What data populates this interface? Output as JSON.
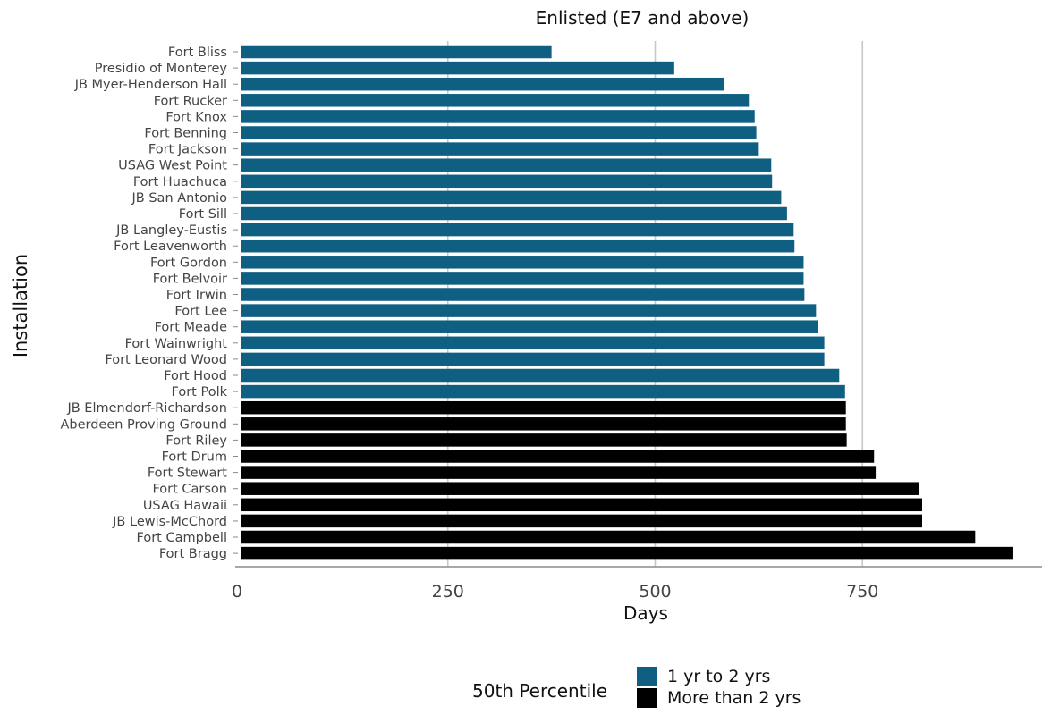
{
  "chart_data": {
    "type": "bar",
    "orientation": "horizontal",
    "title": "Enlisted (E7 and above)",
    "xlabel": "Days",
    "ylabel": "Installation",
    "xlim": [
      0,
      940
    ],
    "xticks": [
      0,
      250,
      500,
      750
    ],
    "grid": "vertical major gridlines",
    "legend_title": "50th Percentile",
    "legend_position": "bottom",
    "groups": [
      {
        "name": "1 yr to 2 yrs",
        "color": "#0f5f82"
      },
      {
        "name": "More than 2 yrs",
        "color": "#000000"
      }
    ],
    "categories": [
      "Fort Bliss",
      "Presidio of Monterey",
      "JB Myer-Henderson Hall",
      "Fort Rucker",
      "Fort Knox",
      "Fort Benning",
      "Fort Jackson",
      "USAG West Point",
      "Fort Huachuca",
      "JB San Antonio",
      "Fort Sill",
      "JB Langley-Eustis",
      "Fort Leavenworth",
      "Fort Gordon",
      "Fort Belvoir",
      "Fort Irwin",
      "Fort Lee",
      "Fort Meade",
      "Fort Wainwright",
      "Fort Leonard Wood",
      "Fort Hood",
      "Fort Polk",
      "JB Elmendorf-Richardson",
      "Aberdeen Proving Ground",
      "Fort Riley",
      "Fort Drum",
      "Fort Stewart",
      "Fort Carson",
      "USAG Hawaii",
      "JB Lewis-McChord",
      "Fort Campbell",
      "Fort Bragg"
    ],
    "values": [
      375,
      523,
      583,
      613,
      620,
      622,
      625,
      640,
      641,
      652,
      659,
      667,
      668,
      679,
      679,
      680,
      694,
      696,
      704,
      704,
      722,
      729,
      730,
      730,
      731,
      764,
      766,
      818,
      822,
      822,
      886,
      932
    ],
    "group_index": [
      0,
      0,
      0,
      0,
      0,
      0,
      0,
      0,
      0,
      0,
      0,
      0,
      0,
      0,
      0,
      0,
      0,
      0,
      0,
      0,
      0,
      0,
      1,
      1,
      1,
      1,
      1,
      1,
      1,
      1,
      1,
      1
    ]
  }
}
